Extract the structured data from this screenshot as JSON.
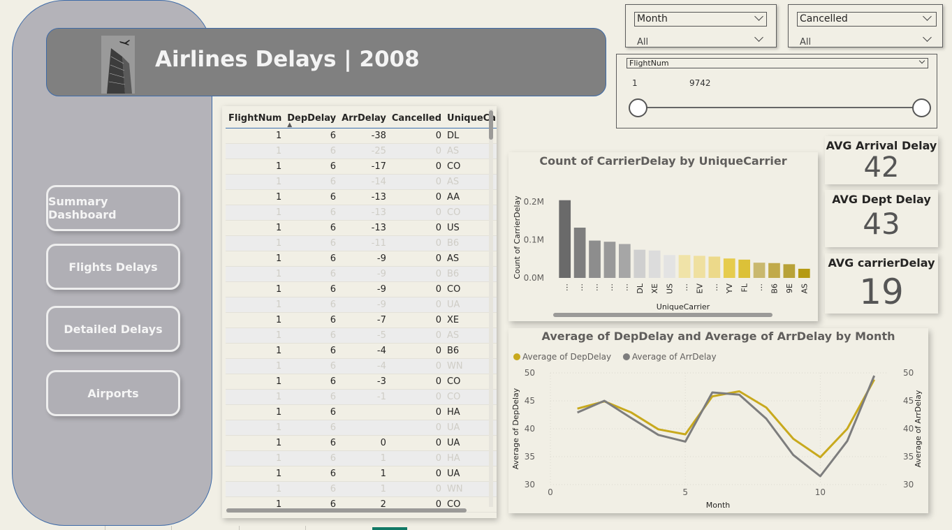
{
  "header": {
    "title": "Airlines Delays | 2008"
  },
  "nav": {
    "summary": "Summary Dashboard",
    "flights": "Flights Delays",
    "detailed": "Detailed Delays",
    "airports": "Airports"
  },
  "slicers": {
    "month": {
      "label": "Month",
      "value": "All"
    },
    "cancelled": {
      "label": "Cancelled",
      "value": "All"
    },
    "flightnum": {
      "label": "FlightNum",
      "min": "1",
      "max": "9742"
    }
  },
  "table": {
    "columns": [
      "FlightNum",
      "DepDelay",
      "ArrDelay",
      "Cancelled",
      "UniqueCarrier"
    ],
    "rows": [
      [
        "1",
        "6",
        "-38",
        "0",
        "DL"
      ],
      [
        "1",
        "6",
        "-25",
        "0",
        "AS"
      ],
      [
        "1",
        "6",
        "-17",
        "0",
        "CO"
      ],
      [
        "1",
        "6",
        "-14",
        "0",
        "AS"
      ],
      [
        "1",
        "6",
        "-13",
        "0",
        "AA"
      ],
      [
        "1",
        "6",
        "-13",
        "0",
        "CO"
      ],
      [
        "1",
        "6",
        "-13",
        "0",
        "US"
      ],
      [
        "1",
        "6",
        "-11",
        "0",
        "B6"
      ],
      [
        "1",
        "6",
        "-9",
        "0",
        "AS"
      ],
      [
        "1",
        "6",
        "-9",
        "0",
        "B6"
      ],
      [
        "1",
        "6",
        "-9",
        "0",
        "CO"
      ],
      [
        "1",
        "6",
        "-9",
        "0",
        "UA"
      ],
      [
        "1",
        "6",
        "-7",
        "0",
        "XE"
      ],
      [
        "1",
        "6",
        "-5",
        "0",
        "AS"
      ],
      [
        "1",
        "6",
        "-4",
        "0",
        "B6"
      ],
      [
        "1",
        "6",
        "-4",
        "0",
        "WN"
      ],
      [
        "1",
        "6",
        "-3",
        "0",
        "CO"
      ],
      [
        "1",
        "6",
        "-1",
        "0",
        "CO"
      ],
      [
        "1",
        "6",
        "",
        "0",
        "HA"
      ],
      [
        "1",
        "6",
        "",
        "0",
        "UA"
      ],
      [
        "1",
        "6",
        "0",
        "0",
        "UA"
      ],
      [
        "1",
        "6",
        "1",
        "0",
        "HA"
      ],
      [
        "1",
        "6",
        "1",
        "0",
        "UA"
      ],
      [
        "1",
        "6",
        "1",
        "0",
        "WN"
      ],
      [
        "1",
        "6",
        "2",
        "0",
        "CO"
      ]
    ]
  },
  "kpis": {
    "arrival": {
      "label": "AVG Arrival Delay",
      "value": "42"
    },
    "dept": {
      "label": "AVG Dept Delay",
      "value": "43"
    },
    "carrier": {
      "label": "AVG carrierDelay",
      "value": "19"
    }
  },
  "chart_data": [
    {
      "type": "bar",
      "title": "Count of CarrierDelay by UniqueCarrier",
      "xlabel": "UniqueCarrier",
      "ylabel": "Count of CarrierDelay",
      "categories": [
        "…",
        "…",
        "…",
        "…",
        "…",
        "DL",
        "XE",
        "US",
        "…",
        "EV",
        "…",
        "YV",
        "FL",
        "…",
        "B6",
        "9E",
        "AS"
      ],
      "values": [
        204000,
        132000,
        98000,
        95000,
        89000,
        74000,
        72000,
        60000,
        60000,
        58000,
        56000,
        51000,
        48000,
        40000,
        39000,
        36000,
        24000
      ],
      "colors": [
        "#6a6a6a",
        "#7e7e7e",
        "#8d8d8d",
        "#999999",
        "#a6a6a6",
        "#cfcfcf",
        "#dcdcdc",
        "#e3e3e3",
        "#f0e3a8",
        "#efe0a0",
        "#ecd98a",
        "#e6cc4d",
        "#dcc138",
        "#c9b86e",
        "#c1aa4a",
        "#b8a238",
        "#b59a12"
      ],
      "yticks": [
        "0.0M",
        "0.1M",
        "0.2M"
      ],
      "ylim": [
        0,
        220000
      ]
    },
    {
      "type": "line",
      "title": "Average of DepDelay and Average of ArrDelay by Month",
      "xlabel": "Month",
      "ylabel": "Average of DepDelay",
      "ylabel_right": "Average of ArrDelay",
      "x": [
        1,
        2,
        3,
        4,
        5,
        6,
        7,
        8,
        9,
        10,
        11,
        12
      ],
      "xticks": [
        "0",
        "5",
        "10"
      ],
      "yticks": [
        "30",
        "35",
        "40",
        "45",
        "50"
      ],
      "ylim": [
        30,
        50
      ],
      "xlim": [
        0,
        12.5
      ],
      "series": [
        {
          "name": "Average of DepDelay",
          "color": "#c8a91d",
          "values": [
            43.6,
            44.9,
            42.9,
            39.9,
            39.0,
            45.8,
            46.7,
            43.8,
            38.2,
            34.9,
            40.0,
            48.8
          ]
        },
        {
          "name": "Average of ArrDelay",
          "color": "#7d7d7d",
          "values": [
            42.9,
            45.0,
            41.9,
            38.9,
            37.7,
            46.5,
            46.1,
            41.8,
            35.3,
            31.5,
            37.8,
            49.5
          ]
        }
      ]
    }
  ]
}
